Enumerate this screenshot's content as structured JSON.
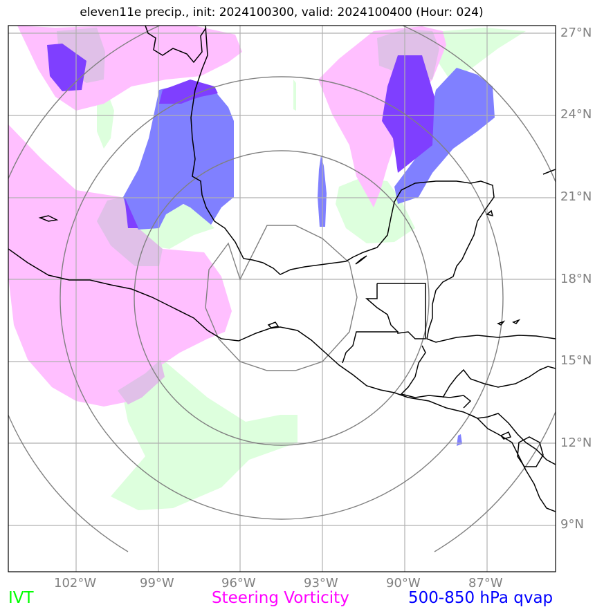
{
  "title": "eleven11e precip., init: 2024100300, valid: 2024100400 (Hour: 024)",
  "lat_labels": [
    "27°N",
    "24°N",
    "21°N",
    "18°N",
    "15°N",
    "12°N",
    "9°N"
  ],
  "lon_labels": [
    "102°W",
    "99°W",
    "96°W",
    "93°W",
    "90°W",
    "87°W"
  ],
  "legend": {
    "ivt": {
      "label": "IVT",
      "color": "#00ff00"
    },
    "vorticity": {
      "label": "Steering Vorticity",
      "color": "#ff00ff"
    },
    "qvap": {
      "label": "500-850 hPa qvap",
      "color": "#0000ff"
    }
  },
  "colors": {
    "ivt_fill": "#ddffdd",
    "vorticity_fill": "#ffbfff",
    "qvap_fill": "#8080ff",
    "qvap_strong_fill": "#7f3fff",
    "overlap_fill": "#e0c0e8",
    "gridline": "#b0b0b0",
    "range_rings": "#808080",
    "coastline": "#000000"
  }
}
